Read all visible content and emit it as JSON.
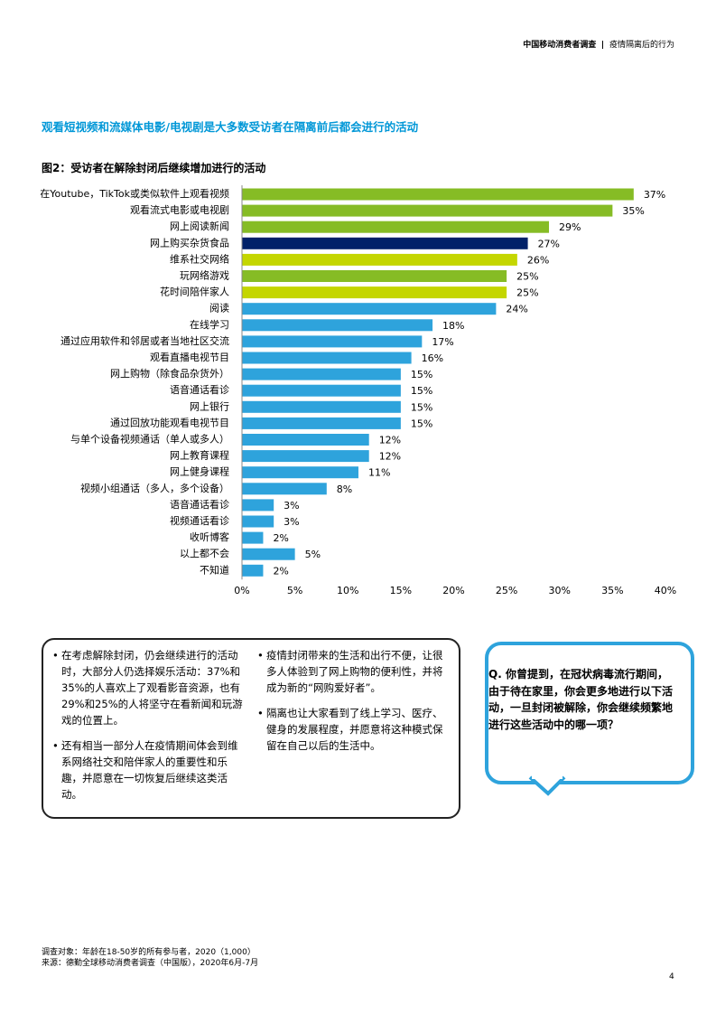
{
  "header": {
    "left": "中国移动消费者调查",
    "right": "疫情隔离后的行为"
  },
  "headline": "观看短视频和流媒体电影/电视剧是大多数受访者在隔离前后都会进行的活动",
  "chart_data": {
    "type": "hbar",
    "title": "图2：受访者在解除封闭后继续增加进行的活动",
    "categories": [
      "在Youtube，TikTok或类似软件上观看视频",
      "观看流式电影或电视剧",
      "网上阅读新闻",
      "网上购买杂货食品",
      "维系社交网络",
      "玩网络游戏",
      "花时间陪伴家人",
      "阅读",
      "在线学习",
      "通过应用软件和邻居或者当地社区交流",
      "观看直播电视节目",
      "网上购物（除食品杂货外）",
      "语音通话看诊",
      "网上银行",
      "通过回放功能观看电视节目",
      "与单个设备视频通话（单人或多人）",
      "网上教育课程",
      "网上健身课程",
      "视频小组通话（多人，多个设备）",
      "语音通话看诊",
      "视频通话看诊",
      "收听博客",
      "以上都不会",
      "不知道"
    ],
    "values": [
      37,
      35,
      29,
      27,
      26,
      25,
      25,
      24,
      18,
      17,
      16,
      15,
      15,
      15,
      15,
      12,
      12,
      11,
      8,
      3,
      3,
      2,
      5,
      2
    ],
    "value_labels": [
      "37%",
      "35%",
      "29%",
      "27%",
      "26%",
      "25%",
      "25%",
      "24%",
      "18%",
      "17%",
      "16%",
      "15%",
      "15%",
      "15%",
      "15%",
      "12%",
      "12%",
      "11%",
      "8%",
      "3%",
      "3%",
      "2%",
      "5%",
      "2%"
    ],
    "colors": [
      "#86bc25",
      "#86bc25",
      "#86bc25",
      "#012169",
      "#c4d600",
      "#86bc25",
      "#c4d600",
      "#2ea3dc",
      "#2ea3dc",
      "#2ea3dc",
      "#2ea3dc",
      "#2ea3dc",
      "#2ea3dc",
      "#2ea3dc",
      "#2ea3dc",
      "#2ea3dc",
      "#2ea3dc",
      "#2ea3dc",
      "#2ea3dc",
      "#2ea3dc",
      "#2ea3dc",
      "#2ea3dc",
      "#2ea3dc",
      "#2ea3dc"
    ],
    "xlim": [
      0,
      40
    ],
    "xticks": [
      {
        "value": 0,
        "label": "0%"
      },
      {
        "value": 5,
        "label": "5%"
      },
      {
        "value": 10,
        "label": "10%"
      },
      {
        "value": 15,
        "label": "15%"
      },
      {
        "value": 20,
        "label": "20%"
      },
      {
        "value": 25,
        "label": "25%"
      },
      {
        "value": 30,
        "label": "30%"
      },
      {
        "value": 35,
        "label": "35%"
      },
      {
        "value": 40,
        "label": "40%"
      }
    ]
  },
  "notes": {
    "left": [
      "在考虑解除封闭，仍会继续进行的活动时，大部分人仍选择娱乐活动：37%和35%的人喜欢上了观看影音资源，也有29%和25%的人将坚守在看新闻和玩游戏的位置上。",
      "还有相当一部分人在疫情期间体会到维系网络社交和陪伴家人的重要性和乐趣，并愿意在一切恢复后继续这类活动。"
    ],
    "right": [
      "疫情封闭带来的生活和出行不便，让很多人体验到了网上购物的便利性，并将成为新的“网购爱好者”。",
      "隔离也让大家看到了线上学习、医疗、健身的发展程度，并愿意将这种模式保留在自己以后的生活中。"
    ]
  },
  "question": "Q. 你曾提到，在冠状病毒流行期间，由于待在家里，你会更多地进行以下活动，一旦封闭被解除，你会继续频繁地进行这些活动中的哪一项？",
  "footnotes": [
    "调查对象：年龄在18-50岁的所有参与者，2020（1,000）",
    "来源：德勤全球移动消费者调查（中国版），2020年6月-7月"
  ],
  "page_number": 4
}
